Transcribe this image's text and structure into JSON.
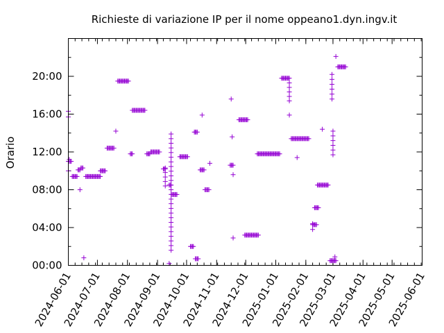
{
  "chart_data": {
    "type": "scatter",
    "title": "Richieste di variazione IP per il nome oppeano1.dyn.ingv.it",
    "xlabel": "",
    "ylabel": "Orario",
    "x_unit": "days since 2024-06-01",
    "y_unit": "hours of day",
    "xlim": [
      0,
      365
    ],
    "ylim": [
      0,
      24
    ],
    "x_ticks": [
      {
        "label": "2024-06-01",
        "day": 0
      },
      {
        "label": "2024-07-01",
        "day": 30
      },
      {
        "label": "2024-08-01",
        "day": 61
      },
      {
        "label": "2024-09-01",
        "day": 92
      },
      {
        "label": "2024-10-01",
        "day": 122
      },
      {
        "label": "2024-11-01",
        "day": 153
      },
      {
        "label": "2024-12-01",
        "day": 183
      },
      {
        "label": "2025-01-01",
        "day": 214
      },
      {
        "label": "2025-02-01",
        "day": 245
      },
      {
        "label": "2025-03-01",
        "day": 273
      },
      {
        "label": "2025-04-01",
        "day": 304
      },
      {
        "label": "2025-05-01",
        "day": 334
      },
      {
        "label": "2025-06-01",
        "day": 365
      }
    ],
    "y_ticks": [
      {
        "label": "00:00",
        "hour": 0
      },
      {
        "label": "04:00",
        "hour": 4
      },
      {
        "label": "08:00",
        "hour": 8
      },
      {
        "label": "12:00",
        "hour": 12
      },
      {
        "label": "16:00",
        "hour": 16
      },
      {
        "label": "20:00",
        "hour": 20
      }
    ],
    "y_minor_step_hours": 2,
    "x_minor_step_days": 7,
    "marker": "+",
    "series_color": "#9400d3",
    "segments": [
      {
        "d0": 0,
        "d1": 3,
        "h": 11.0
      },
      {
        "d0": 4,
        "d1": 9,
        "h": 9.4
      },
      {
        "d0": 10,
        "d1": 12,
        "h": 10.1
      },
      {
        "d0": 13,
        "d1": 15,
        "h": 10.3
      },
      {
        "d0": 18,
        "d1": 33,
        "h": 9.4
      },
      {
        "d0": 33,
        "d1": 38,
        "h": 10.0
      },
      {
        "d0": 40,
        "d1": 47,
        "h": 12.4
      },
      {
        "d0": 51,
        "d1": 62,
        "h": 19.5
      },
      {
        "d0": 64,
        "d1": 66,
        "h": 11.8
      },
      {
        "d0": 66,
        "d1": 79,
        "h": 16.4
      },
      {
        "d0": 81,
        "d1": 84,
        "h": 11.8
      },
      {
        "d0": 85,
        "d1": 94,
        "h": 12.0
      },
      {
        "d0": 98,
        "d1": 100,
        "h": 10.2
      },
      {
        "d0": 104,
        "d1": 106,
        "h": 8.5
      },
      {
        "d0": 107,
        "d1": 112,
        "h": 7.5
      },
      {
        "d0": 115,
        "d1": 123,
        "h": 11.5
      },
      {
        "d0": 126,
        "d1": 129,
        "h": 2.0
      },
      {
        "d0": 130,
        "d1": 133,
        "h": 14.1
      },
      {
        "d0": 131,
        "d1": 134,
        "h": 0.7
      },
      {
        "d0": 136,
        "d1": 140,
        "h": 10.1
      },
      {
        "d0": 141,
        "d1": 145,
        "h": 8.0
      },
      {
        "d0": 167,
        "d1": 170,
        "h": 10.6
      },
      {
        "d0": 176,
        "d1": 185,
        "h": 15.4
      },
      {
        "d0": 182,
        "d1": 196,
        "h": 3.2
      },
      {
        "d0": 195,
        "d1": 218,
        "h": 11.8
      },
      {
        "d0": 220,
        "d1": 228,
        "h": 19.8
      },
      {
        "d0": 230,
        "d1": 248,
        "h": 13.4
      },
      {
        "d0": 252,
        "d1": 256,
        "h": 4.3
      },
      {
        "d0": 254,
        "d1": 258,
        "h": 6.1
      },
      {
        "d0": 257,
        "d1": 268,
        "h": 8.5
      },
      {
        "d0": 270,
        "d1": 276,
        "h": 0.5
      },
      {
        "d0": 278,
        "d1": 286,
        "h": 21.0
      }
    ],
    "columns": [
      {
        "d": 0,
        "h0": 15.7,
        "h1": 16.3
      },
      {
        "d": 100,
        "h0": 8.4,
        "h1": 10.3
      },
      {
        "d": 106,
        "h0": 1.6,
        "h1": 13.9
      },
      {
        "d": 272,
        "h0": 17.6,
        "h1": 20.2
      },
      {
        "d": 273,
        "h0": 11.7,
        "h1": 14.2
      },
      {
        "d": 228,
        "h0": 17.4,
        "h1": 19.3
      },
      {
        "d": 252,
        "h0": 3.8,
        "h1": 4.4
      }
    ],
    "points": [
      {
        "d": 0,
        "h": 10.0
      },
      {
        "d": 1,
        "h": 11.2
      },
      {
        "d": 12,
        "h": 8.0
      },
      {
        "d": 16,
        "h": 0.8
      },
      {
        "d": 49,
        "h": 14.2
      },
      {
        "d": 104,
        "h": 0.2
      },
      {
        "d": 138,
        "h": 15.9
      },
      {
        "d": 146,
        "h": 10.8
      },
      {
        "d": 168,
        "h": 17.6
      },
      {
        "d": 169,
        "h": 13.6
      },
      {
        "d": 170,
        "h": 9.6
      },
      {
        "d": 170,
        "h": 2.9
      },
      {
        "d": 228,
        "h": 15.9
      },
      {
        "d": 236,
        "h": 11.4
      },
      {
        "d": 262,
        "h": 14.4
      },
      {
        "d": 276,
        "h": 22.1
      },
      {
        "d": 275,
        "h": 0.9
      }
    ]
  }
}
